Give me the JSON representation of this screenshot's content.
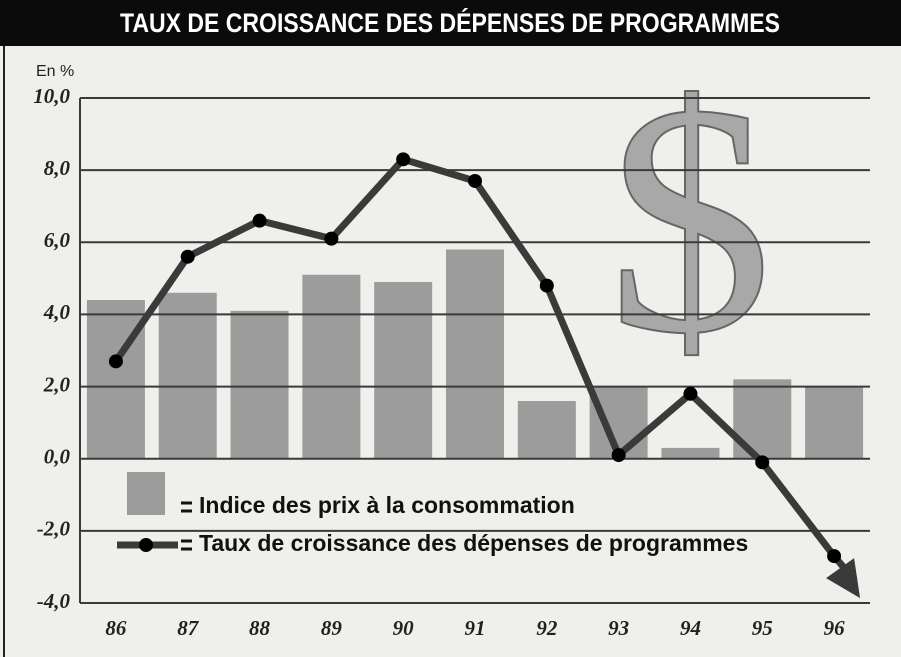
{
  "chart_data": {
    "type": "bar_line",
    "title": "TAUX DE CROISSANCE DES DÉPENSES DE PROGRAMMES",
    "y_unit_label": "En %",
    "annotation": "$",
    "categories": [
      "86",
      "87",
      "88",
      "89",
      "90",
      "91",
      "92",
      "93",
      "94",
      "95",
      "96"
    ],
    "series": [
      {
        "name": "Indice des prix à la consommation",
        "kind": "bar",
        "color": "#9c9c9c",
        "values": [
          4.4,
          4.6,
          4.1,
          5.1,
          4.9,
          5.8,
          1.6,
          2.0,
          0.3,
          2.2,
          2.0
        ]
      },
      {
        "name": "Taux de croissance des dépenses de programmes",
        "kind": "line",
        "color": "#3a3a3a",
        "values": [
          2.7,
          5.6,
          6.6,
          6.1,
          8.3,
          7.7,
          4.8,
          0.1,
          1.8,
          -0.1,
          -2.7
        ]
      }
    ],
    "ylim": [
      -4,
      10
    ],
    "yticks": [
      {
        "value": -4,
        "label": "-4,0"
      },
      {
        "value": -2,
        "label": "-2,0"
      },
      {
        "value": 0,
        "label": "0,0"
      },
      {
        "value": 2,
        "label": "2,0"
      },
      {
        "value": 4,
        "label": "4,0"
      },
      {
        "value": 6,
        "label": "6,0"
      },
      {
        "value": 8,
        "label": "8,0"
      },
      {
        "value": 10,
        "label": "10,0"
      }
    ],
    "grid": true
  }
}
